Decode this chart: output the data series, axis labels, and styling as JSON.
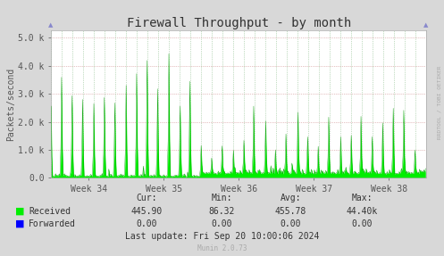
{
  "title": "Firewall Throughput - by month",
  "ylabel": "Packets/second",
  "background_color": "#d8d8d8",
  "plot_bg_color": "#ffffff",
  "ytick_labels": [
    "0.0",
    "1.0 k",
    "2.0 k",
    "3.0 k",
    "4.0 k",
    "5.0 k"
  ],
  "ytick_vals": [
    0,
    1000,
    2000,
    3000,
    4000,
    5000
  ],
  "ylim": [
    0,
    5250
  ],
  "xlabels": [
    "Week 34",
    "Week 35",
    "Week 36",
    "Week 37",
    "Week 38"
  ],
  "received_color": "#00ee00",
  "forwarded_color": "#0000ff",
  "legend_items": [
    "Received",
    "Forwarded"
  ],
  "stats_headers": [
    "Cur:",
    "Min:",
    "Avg:",
    "Max:"
  ],
  "stats_received": [
    "445.90",
    "86.32",
    "455.78",
    "44.40k"
  ],
  "stats_forwarded": [
    "0.00",
    "0.00",
    "0.00",
    "0.00"
  ],
  "last_update": "Last update: Fri Sep 20 10:00:06 2024",
  "munin_version": "Munin 2.0.73",
  "rrdtool_label": "RRDTOOL / TOBI OETIKER",
  "title_fontsize": 10,
  "axis_fontsize": 7,
  "stats_fontsize": 7
}
